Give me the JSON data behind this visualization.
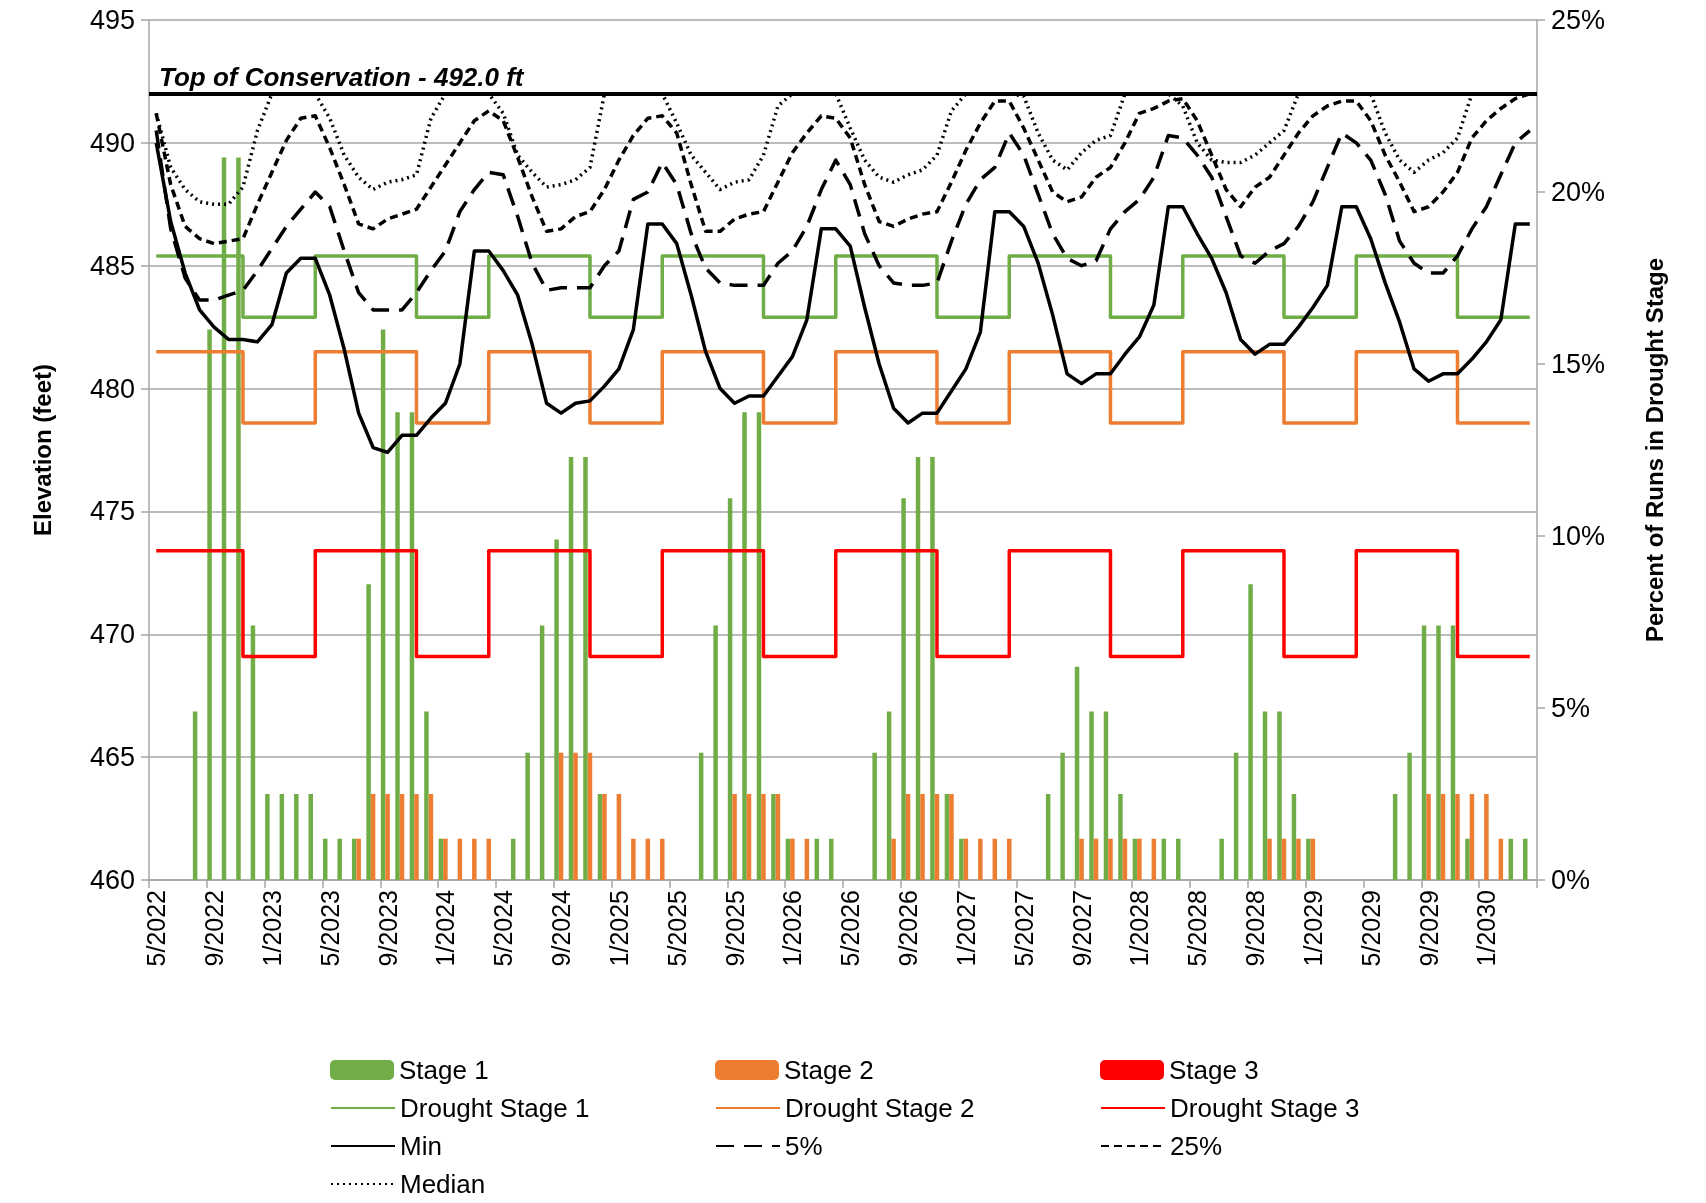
{
  "chart_data": {
    "type": "bar",
    "xlabel": null,
    "ylabel": "Elevation (feet)",
    "y2label": "Percent of Runs in Drought Stage",
    "categories": [
      "5/2022",
      null,
      null,
      null,
      "9/2022",
      null,
      null,
      null,
      "1/2023",
      null,
      null,
      null,
      "5/2023",
      null,
      null,
      null,
      "9/2023",
      null,
      null,
      null,
      "1/2024",
      null,
      null,
      null,
      "5/2024",
      null,
      null,
      null,
      "9/2024",
      null,
      null,
      null,
      "1/2025",
      null,
      null,
      null,
      "5/2025",
      null,
      null,
      null,
      "9/2025",
      null,
      null,
      null,
      "1/2026",
      null,
      null,
      null,
      "5/2026",
      null,
      null,
      null,
      "9/2026",
      null,
      null,
      null,
      "1/2027",
      null,
      null,
      null,
      "5/2027",
      null,
      null,
      null,
      "9/2027",
      null,
      null,
      null,
      "1/2028",
      null,
      null,
      null,
      "5/2028",
      null,
      null,
      null,
      "9/2028",
      null,
      null,
      null,
      "1/2029",
      null,
      null,
      null,
      "5/2029",
      null,
      null,
      null,
      "9/2029",
      null,
      null,
      null,
      "1/2030",
      null,
      null,
      null
    ],
    "ylim": [
      460,
      495
    ],
    "yticks": [
      460,
      465,
      470,
      475,
      480,
      485,
      490,
      495
    ],
    "y2lim": [
      0,
      25
    ],
    "y2ticks": [
      {
        "value": 0,
        "label": "0%"
      },
      {
        "value": 5,
        "label": "5%"
      },
      {
        "value": 10,
        "label": "10%"
      },
      {
        "value": 15,
        "label": "15%"
      },
      {
        "value": 20,
        "label": "20%"
      },
      {
        "value": 25,
        "label": "25%"
      }
    ],
    "grid": "y",
    "legend": "bottom",
    "marker": "none",
    "ref_lines": [
      {
        "axis": "y",
        "value": 492.0,
        "label": "Top of Conservation - 492.0 ft",
        "color": "#000000"
      }
    ],
    "series": [
      {
        "name": "Stage 1",
        "axis": "y2",
        "color": "#70ad47",
        "values": [
          0,
          0,
          0,
          4.9,
          16.0,
          21.0,
          21.0,
          7.4,
          2.5,
          2.5,
          2.5,
          2.5,
          1.2,
          1.2,
          1.2,
          8.6,
          16.0,
          13.6,
          13.6,
          4.9,
          1.2,
          0,
          0,
          0,
          0,
          1.2,
          3.7,
          7.4,
          9.9,
          12.3,
          12.3,
          2.5,
          0,
          0,
          0,
          0,
          0,
          0,
          3.7,
          7.4,
          11.1,
          13.6,
          13.6,
          2.5,
          1.2,
          0,
          1.2,
          1.2,
          0,
          0,
          3.7,
          4.9,
          11.1,
          12.3,
          12.3,
          2.5,
          1.2,
          0,
          0,
          0,
          0,
          0,
          2.5,
          3.7,
          6.2,
          4.9,
          4.9,
          2.5,
          1.2,
          0,
          1.2,
          1.2,
          0,
          0,
          1.2,
          3.7,
          8.6,
          4.9,
          4.9,
          2.5,
          1.2,
          0,
          0,
          0,
          0,
          0,
          2.5,
          3.7,
          7.4,
          7.4,
          7.4,
          1.2,
          0,
          0,
          1.2,
          1.2
        ]
      },
      {
        "name": "Stage 2",
        "axis": "y2",
        "color": "#ed7d31",
        "values": [
          0,
          0,
          0,
          0,
          0,
          0,
          0,
          0,
          0,
          0,
          0,
          0,
          0,
          0,
          1.2,
          2.5,
          2.5,
          2.5,
          2.5,
          2.5,
          1.2,
          1.2,
          1.2,
          1.2,
          0,
          0,
          0,
          0,
          3.7,
          3.7,
          3.7,
          2.5,
          2.5,
          1.2,
          1.2,
          1.2,
          0,
          0,
          0,
          0,
          2.5,
          2.5,
          2.5,
          2.5,
          1.2,
          1.2,
          0,
          0,
          0,
          0,
          0,
          1.2,
          2.5,
          2.5,
          2.5,
          2.5,
          1.2,
          1.2,
          1.2,
          1.2,
          0,
          0,
          0,
          0,
          1.2,
          1.2,
          1.2,
          1.2,
          1.2,
          1.2,
          0,
          0,
          0,
          0,
          0,
          0,
          0,
          1.2,
          1.2,
          1.2,
          1.2,
          0,
          0,
          0,
          0,
          0,
          0,
          0,
          2.5,
          2.5,
          2.5,
          2.5,
          2.5,
          1.2,
          0,
          0
        ]
      },
      {
        "name": "Stage 3",
        "axis": "y2",
        "color": "#ff0000",
        "values": [
          0,
          0,
          0,
          0,
          0,
          0,
          0,
          0,
          0,
          0,
          0,
          0,
          0,
          0,
          0,
          0,
          0,
          0,
          0,
          0,
          0,
          0,
          0,
          0,
          0,
          0,
          0,
          0,
          0,
          0,
          0,
          0,
          0,
          0,
          0,
          0,
          0,
          0,
          0,
          0,
          0,
          0,
          0,
          0,
          0,
          0,
          0,
          0,
          0,
          0,
          0,
          0,
          0,
          0,
          0,
          0,
          0,
          0,
          0,
          0,
          0,
          0,
          0,
          0,
          0,
          0,
          0,
          0,
          0,
          0,
          0,
          0,
          0,
          0,
          0,
          0,
          0,
          0,
          0,
          0,
          0,
          0,
          0,
          0,
          0,
          0,
          0,
          0,
          0,
          0,
          0,
          0,
          0,
          0,
          0,
          0
        ]
      },
      {
        "name": "Drought Stage 1",
        "type": "step",
        "color": "#70ad47",
        "line_style": "solid",
        "values": [
          485.4,
          485.4,
          485.4,
          485.4,
          485.4,
          485.4,
          482.9,
          482.9,
          482.9,
          482.9,
          482.9,
          485.4,
          485.4,
          485.4,
          485.4,
          485.4,
          485.4,
          485.4,
          482.9,
          482.9,
          482.9,
          482.9,
          482.9,
          485.4,
          485.4,
          485.4,
          485.4,
          485.4,
          485.4,
          485.4,
          482.9,
          482.9,
          482.9,
          482.9,
          482.9,
          485.4,
          485.4,
          485.4,
          485.4,
          485.4,
          485.4,
          485.4,
          482.9,
          482.9,
          482.9,
          482.9,
          482.9,
          485.4,
          485.4,
          485.4,
          485.4,
          485.4,
          485.4,
          485.4,
          482.9,
          482.9,
          482.9,
          482.9,
          482.9,
          485.4,
          485.4,
          485.4,
          485.4,
          485.4,
          485.4,
          485.4,
          482.9,
          482.9,
          482.9,
          482.9,
          482.9,
          485.4,
          485.4,
          485.4,
          485.4,
          485.4,
          485.4,
          485.4,
          482.9,
          482.9,
          482.9,
          482.9,
          482.9,
          485.4,
          485.4,
          485.4,
          485.4,
          485.4,
          485.4,
          485.4,
          482.9,
          482.9,
          482.9,
          482.9,
          482.9,
          482.9
        ]
      },
      {
        "name": "Drought Stage 2",
        "type": "step",
        "color": "#ed7d31",
        "line_style": "solid",
        "values": [
          481.5,
          481.5,
          481.5,
          481.5,
          481.5,
          481.5,
          478.6,
          478.6,
          478.6,
          478.6,
          478.6,
          481.5,
          481.5,
          481.5,
          481.5,
          481.5,
          481.5,
          481.5,
          478.6,
          478.6,
          478.6,
          478.6,
          478.6,
          481.5,
          481.5,
          481.5,
          481.5,
          481.5,
          481.5,
          481.5,
          478.6,
          478.6,
          478.6,
          478.6,
          478.6,
          481.5,
          481.5,
          481.5,
          481.5,
          481.5,
          481.5,
          481.5,
          478.6,
          478.6,
          478.6,
          478.6,
          478.6,
          481.5,
          481.5,
          481.5,
          481.5,
          481.5,
          481.5,
          481.5,
          478.6,
          478.6,
          478.6,
          478.6,
          478.6,
          481.5,
          481.5,
          481.5,
          481.5,
          481.5,
          481.5,
          481.5,
          478.6,
          478.6,
          478.6,
          478.6,
          478.6,
          481.5,
          481.5,
          481.5,
          481.5,
          481.5,
          481.5,
          481.5,
          478.6,
          478.6,
          478.6,
          478.6,
          478.6,
          481.5,
          481.5,
          481.5,
          481.5,
          481.5,
          481.5,
          481.5,
          478.6,
          478.6,
          478.6,
          478.6,
          478.6,
          478.6
        ]
      },
      {
        "name": "Drought Stage 3",
        "type": "step",
        "color": "#ff0000",
        "line_style": "solid",
        "values": [
          473.4,
          473.4,
          473.4,
          473.4,
          473.4,
          473.4,
          469.1,
          469.1,
          469.1,
          469.1,
          469.1,
          473.4,
          473.4,
          473.4,
          473.4,
          473.4,
          473.4,
          473.4,
          469.1,
          469.1,
          469.1,
          469.1,
          469.1,
          473.4,
          473.4,
          473.4,
          473.4,
          473.4,
          473.4,
          473.4,
          469.1,
          469.1,
          469.1,
          469.1,
          469.1,
          473.4,
          473.4,
          473.4,
          473.4,
          473.4,
          473.4,
          473.4,
          469.1,
          469.1,
          469.1,
          469.1,
          469.1,
          473.4,
          473.4,
          473.4,
          473.4,
          473.4,
          473.4,
          473.4,
          469.1,
          469.1,
          469.1,
          469.1,
          469.1,
          473.4,
          473.4,
          473.4,
          473.4,
          473.4,
          473.4,
          473.4,
          469.1,
          469.1,
          469.1,
          469.1,
          469.1,
          473.4,
          473.4,
          473.4,
          473.4,
          473.4,
          473.4,
          473.4,
          469.1,
          469.1,
          469.1,
          469.1,
          469.1,
          473.4,
          473.4,
          473.4,
          473.4,
          473.4,
          473.4,
          473.4,
          469.1,
          469.1,
          469.1,
          469.1,
          469.1,
          469.1
        ]
      },
      {
        "name": "Min",
        "type": "line",
        "color": "#000000",
        "line_style": "solid",
        "values": [
          490.0,
          486.8,
          484.7,
          483.2,
          482.5,
          482.0,
          482.0,
          481.9,
          482.6,
          484.7,
          485.3,
          485.3,
          483.8,
          481.6,
          479.0,
          477.6,
          477.4,
          478.1,
          478.1,
          478.8,
          479.4,
          481.0,
          485.6,
          485.6,
          484.8,
          483.8,
          481.8,
          479.4,
          479.0,
          479.4,
          479.5,
          480.1,
          480.8,
          482.4,
          486.7,
          486.7,
          485.9,
          483.8,
          481.5,
          480.0,
          479.4,
          479.7,
          479.7,
          480.5,
          481.3,
          482.8,
          486.5,
          486.5,
          485.8,
          483.3,
          481.0,
          479.2,
          478.6,
          479.0,
          479.0,
          479.9,
          480.8,
          482.3,
          487.2,
          487.2,
          486.6,
          485.1,
          483.0,
          480.6,
          480.2,
          480.6,
          480.6,
          481.4,
          482.1,
          483.4,
          487.4,
          487.4,
          486.3,
          485.3,
          483.9,
          482.0,
          481.4,
          481.8,
          481.8,
          482.5,
          483.3,
          484.2,
          487.4,
          487.4,
          486.1,
          484.3,
          482.7,
          480.8,
          480.3,
          480.6,
          480.6,
          481.2,
          481.9,
          482.8,
          486.7,
          486.7
        ]
      },
      {
        "name": "5%",
        "type": "line",
        "color": "#000000",
        "line_style": "dashed",
        "values": [
          490.5,
          486.5,
          484.5,
          483.6,
          483.6,
          483.8,
          484.0,
          484.8,
          485.7,
          486.6,
          487.3,
          488.0,
          487.4,
          485.6,
          483.9,
          483.2,
          483.2,
          483.2,
          483.9,
          484.8,
          485.6,
          487.2,
          488.1,
          488.8,
          488.7,
          487.0,
          485.1,
          484.0,
          484.1,
          484.1,
          484.1,
          485.0,
          485.6,
          487.7,
          488.0,
          489.2,
          488.3,
          486.3,
          484.9,
          484.3,
          484.2,
          484.2,
          484.2,
          485.1,
          485.6,
          486.6,
          488.1,
          489.3,
          488.3,
          486.3,
          485.0,
          484.3,
          484.2,
          484.2,
          484.3,
          486.0,
          487.5,
          488.5,
          489.0,
          490.4,
          489.5,
          487.9,
          486.3,
          485.3,
          485.0,
          485.2,
          486.5,
          487.2,
          487.7,
          488.6,
          490.3,
          490.2,
          489.5,
          488.6,
          487.0,
          485.4,
          485.1,
          485.6,
          485.9,
          486.6,
          487.6,
          489.0,
          490.4,
          490.0,
          489.3,
          487.9,
          486.0,
          485.1,
          484.7,
          484.7,
          485.4,
          486.5,
          487.4,
          488.7,
          490.0,
          490.5
        ]
      },
      {
        "name": "25%",
        "type": "line",
        "color": "#000000",
        "line_style": "dashed",
        "values": [
          491.2,
          488.3,
          486.6,
          486.1,
          485.9,
          486.0,
          486.1,
          487.5,
          488.8,
          490.1,
          491.0,
          491.1,
          489.8,
          488.3,
          486.7,
          486.5,
          486.9,
          487.1,
          487.3,
          488.2,
          489.1,
          490.0,
          490.9,
          491.3,
          490.9,
          489.4,
          487.8,
          486.4,
          486.5,
          487.0,
          487.2,
          488.1,
          489.3,
          490.3,
          491.0,
          491.1,
          490.4,
          488.3,
          486.4,
          486.4,
          486.9,
          487.1,
          487.2,
          488.4,
          489.6,
          490.4,
          491.1,
          491.0,
          490.2,
          488.3,
          486.8,
          486.6,
          486.9,
          487.1,
          487.2,
          488.4,
          489.7,
          490.8,
          491.7,
          491.7,
          490.6,
          489.3,
          488.0,
          487.6,
          487.8,
          488.6,
          489.0,
          490.0,
          491.2,
          491.4,
          491.7,
          491.8,
          490.9,
          489.5,
          488.1,
          487.4,
          488.2,
          488.6,
          489.5,
          490.4,
          491.1,
          491.5,
          491.7,
          491.7,
          490.9,
          489.5,
          488.4,
          487.2,
          487.4,
          488.0,
          488.8,
          490.2,
          490.9,
          491.4,
          491.8,
          492.0
        ]
      },
      {
        "name": "Median",
        "type": "line",
        "color": "#000000",
        "line_style": "dotted",
        "values": [
          491.2,
          489.0,
          488.1,
          487.6,
          487.5,
          487.5,
          488.2,
          490.5,
          492.0,
          492.0,
          492.0,
          492.0,
          491.0,
          489.5,
          488.6,
          488.1,
          488.4,
          488.5,
          488.7,
          491.0,
          492.0,
          492.0,
          492.0,
          492.0,
          491.2,
          489.5,
          488.8,
          488.2,
          488.3,
          488.5,
          489.0,
          492.0,
          492.0,
          492.0,
          492.0,
          492.0,
          490.8,
          489.5,
          488.8,
          488.1,
          488.4,
          488.5,
          489.5,
          491.5,
          492.0,
          492.0,
          492.0,
          492.0,
          490.6,
          489.3,
          488.6,
          488.4,
          488.7,
          488.9,
          489.5,
          491.3,
          492.0,
          492.0,
          492.0,
          492.0,
          491.9,
          490.4,
          489.3,
          488.9,
          489.6,
          490.1,
          490.3,
          492.0,
          492.0,
          492.0,
          492.0,
          491.5,
          490.0,
          489.3,
          489.2,
          489.2,
          489.5,
          490.0,
          490.5,
          492.0,
          492.0,
          492.0,
          492.0,
          492.0,
          492.0,
          490.4,
          489.3,
          488.8,
          489.3,
          489.6,
          490.2,
          492.0,
          492.0,
          492.0,
          492.0,
          492.0
        ]
      }
    ]
  }
}
